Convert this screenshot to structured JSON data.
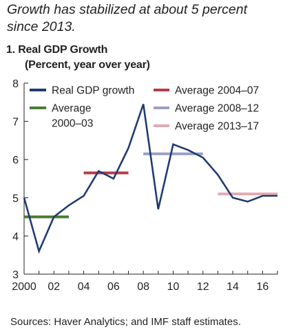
{
  "headline": {
    "line1": "Growth has stabilized at about 5 percent",
    "line2": "since 2013."
  },
  "chart_data": {
    "type": "line",
    "title": "1. Real GDP Growth",
    "subtitle": "(Percent, year over year)",
    "xlabel": "",
    "ylabel": "",
    "xlim": [
      2000,
      2017
    ],
    "ylim": [
      3,
      8
    ],
    "y_ticks": [
      "3",
      "4",
      "5",
      "6",
      "7",
      "8"
    ],
    "x_ticks": [
      {
        "value": 2000,
        "label": "2000"
      },
      {
        "value": 2002,
        "label": "02"
      },
      {
        "value": 2004,
        "label": "04"
      },
      {
        "value": 2006,
        "label": "06"
      },
      {
        "value": 2008,
        "label": "08"
      },
      {
        "value": 2010,
        "label": "10"
      },
      {
        "value": 2012,
        "label": "12"
      },
      {
        "value": 2014,
        "label": "14"
      },
      {
        "value": 2016,
        "label": "16"
      }
    ],
    "grid": false,
    "legend_placement": "top",
    "series": [
      {
        "name": "Real GDP growth",
        "color": "#1f3b73",
        "x": [
          2000,
          2001,
          2002,
          2003,
          2004,
          2005,
          2006,
          2007,
          2008,
          2009,
          2010,
          2011,
          2012,
          2013,
          2014,
          2015,
          2016,
          2017
        ],
        "y": [
          5.0,
          3.6,
          4.5,
          4.8,
          5.05,
          5.7,
          5.5,
          6.3,
          7.45,
          4.7,
          6.4,
          6.25,
          6.05,
          5.6,
          5.0,
          4.9,
          5.05,
          5.05
        ]
      }
    ],
    "averages": [
      {
        "name": "Average 2000–03",
        "legend_line1": "Average",
        "legend_line2": "2000–03",
        "color": "#4a7a35",
        "x_start": 2000,
        "x_end": 2003,
        "value": 4.5
      },
      {
        "name": "Average 2004–07",
        "color": "#b43c46",
        "x_start": 2004,
        "x_end": 2007,
        "value": 5.65
      },
      {
        "name": "Average 2008–12",
        "color": "#9c9fc4",
        "x_start": 2008,
        "x_end": 2012,
        "value": 6.15
      },
      {
        "name": "Average 2013–17",
        "color": "#e2a9b2",
        "x_start": 2013,
        "x_end": 2017,
        "value": 5.1
      }
    ]
  },
  "source": "Sources: Haver Analytics; and IMF staff estimates."
}
